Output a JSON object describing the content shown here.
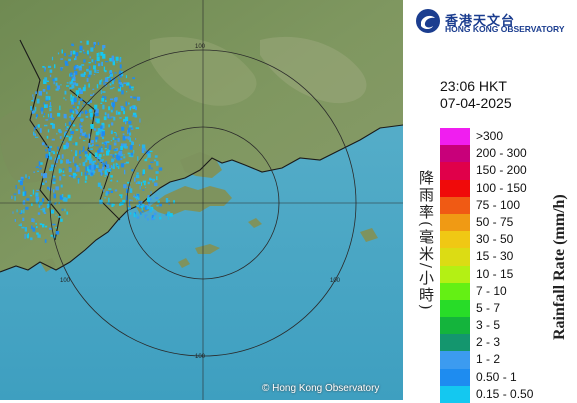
{
  "map": {
    "ring_label": "100",
    "copyright": "© Hong Kong Observatory"
  },
  "header": {
    "org_name_zh": "香港天文台",
    "org_name_en": "HONG KONG OBSERVATORY",
    "time": "23:06 HKT",
    "date": "07-04-2025"
  },
  "legend": {
    "title_zh": "降雨率(毫米/小時)",
    "title_en": "Rainfall Rate (mm/h)",
    "items": [
      {
        "label": ">300",
        "color": "#f01ef0"
      },
      {
        "label": "200 - 300",
        "color": "#c8007a"
      },
      {
        "label": "150 - 200",
        "color": "#e0004a"
      },
      {
        "label": "100 - 150",
        "color": "#f00a0a"
      },
      {
        "label": "75 - 100",
        "color": "#f05a14"
      },
      {
        "label": "50 - 75",
        "color": "#f09a14"
      },
      {
        "label": "30 - 50",
        "color": "#f0c814"
      },
      {
        "label": "15 - 30",
        "color": "#dcdc14"
      },
      {
        "label": "10 - 15",
        "color": "#b4f014"
      },
      {
        "label": "7 - 10",
        "color": "#64f014"
      },
      {
        "label": "5 - 7",
        "color": "#28dc28"
      },
      {
        "label": "3 - 5",
        "color": "#14b43c"
      },
      {
        "label": "2 - 3",
        "color": "#14966e"
      },
      {
        "label": "1 - 2",
        "color": "#3c9bf0"
      },
      {
        "label": "0.50 - 1",
        "color": "#1e8cf0"
      },
      {
        "label": "0.15 - 0.50",
        "color": "#14c8f0"
      }
    ]
  }
}
